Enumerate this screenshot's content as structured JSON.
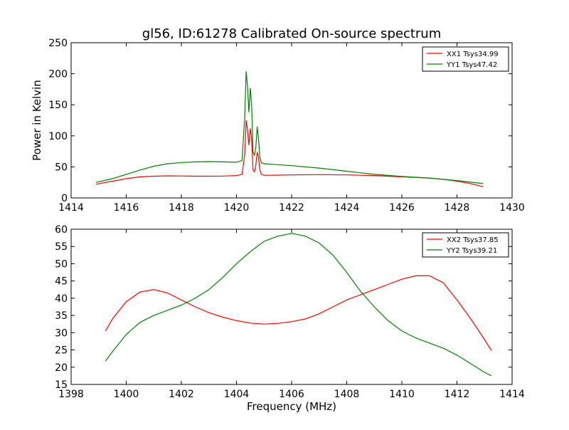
{
  "title": "gl56, ID:61278 Calibrated On-source spectrum",
  "chart_data": [
    {
      "type": "line",
      "title": "",
      "xlabel": "",
      "ylabel": "Power in Kelvin",
      "xlim": [
        1414,
        1430
      ],
      "ylim": [
        0,
        250
      ],
      "xticks": [
        1414,
        1416,
        1418,
        1420,
        1422,
        1424,
        1426,
        1428,
        1430
      ],
      "yticks": [
        0,
        50,
        100,
        150,
        200,
        250
      ],
      "legend_position": "top-right",
      "series": [
        {
          "name": "XX1 Tsys34.99",
          "color": "#ff0000",
          "x": [
            1414.9,
            1415.5,
            1416.0,
            1416.5,
            1417.0,
            1417.5,
            1418.0,
            1418.5,
            1419.0,
            1419.5,
            1420.0,
            1420.2,
            1420.3,
            1420.35,
            1420.4,
            1420.45,
            1420.5,
            1420.55,
            1420.6,
            1420.65,
            1420.7,
            1420.75,
            1420.8,
            1420.85,
            1420.9,
            1421.0,
            1421.5,
            1422.0,
            1423.0,
            1424.0,
            1425.0,
            1426.0,
            1427.0,
            1427.5,
            1428.0,
            1428.5,
            1428.95
          ],
          "y": [
            22,
            27,
            31,
            34,
            35,
            35.5,
            35.3,
            35,
            35,
            35.2,
            36,
            38,
            70,
            125,
            110,
            85,
            112,
            95,
            45,
            42,
            52,
            74,
            65,
            45,
            38,
            36.5,
            36.7,
            37,
            37.5,
            37,
            36,
            34,
            32,
            30,
            27,
            23,
            18
          ]
        },
        {
          "name": "YY1 Tsys47.42",
          "color": "#008000",
          "x": [
            1414.9,
            1415.5,
            1416.0,
            1416.5,
            1417.0,
            1417.5,
            1418.0,
            1418.5,
            1419.0,
            1419.5,
            1420.0,
            1420.2,
            1420.3,
            1420.35,
            1420.4,
            1420.45,
            1420.5,
            1420.55,
            1420.6,
            1420.65,
            1420.7,
            1420.75,
            1420.8,
            1420.85,
            1420.9,
            1421.0,
            1422.0,
            1423.0,
            1424.0,
            1425.0,
            1426.0,
            1427.0,
            1428.0,
            1428.95
          ],
          "y": [
            25,
            31,
            38,
            45,
            51,
            55,
            57,
            58,
            58.5,
            58,
            57.5,
            60,
            130,
            204,
            180,
            138,
            177,
            150,
            75,
            68,
            80,
            115,
            95,
            65,
            57,
            55,
            52,
            48,
            43,
            38,
            34.5,
            32,
            28,
            23
          ]
        }
      ]
    },
    {
      "type": "line",
      "title": "",
      "xlabel": "Frequency (MHz)",
      "ylabel": "",
      "xlim": [
        1398,
        1414
      ],
      "ylim": [
        15,
        60
      ],
      "xticks": [
        1398,
        1400,
        1402,
        1404,
        1406,
        1408,
        1410,
        1412,
        1414
      ],
      "yticks": [
        15,
        20,
        25,
        30,
        35,
        40,
        45,
        50,
        55,
        60
      ],
      "legend_position": "top-right",
      "series": [
        {
          "name": "XX2 Tsys37.85",
          "color": "#ff0000",
          "x": [
            1399.25,
            1399.5,
            1400.0,
            1400.5,
            1401.0,
            1401.5,
            1402.0,
            1402.5,
            1403.0,
            1403.5,
            1404.0,
            1404.5,
            1405.0,
            1405.5,
            1406.0,
            1406.5,
            1407.0,
            1407.5,
            1408.0,
            1408.5,
            1409.0,
            1409.5,
            1410.0,
            1410.5,
            1411.0,
            1411.5,
            1412.0,
            1412.5,
            1413.0,
            1413.25
          ],
          "y": [
            30.5,
            34,
            39,
            41.8,
            42.5,
            41.5,
            39.5,
            37.5,
            35.8,
            34.5,
            33.5,
            32.8,
            32.5,
            32.7,
            33.2,
            34,
            35.5,
            37.5,
            39.5,
            41,
            42.5,
            44,
            45.5,
            46.5,
            46.5,
            44.5,
            39.5,
            34,
            28,
            24.8
          ]
        },
        {
          "name": "YY2 Tsys39.21",
          "color": "#008000",
          "x": [
            1399.25,
            1399.5,
            1400.0,
            1400.5,
            1401.0,
            1401.5,
            1402.0,
            1402.5,
            1403.0,
            1403.5,
            1404.0,
            1404.5,
            1405.0,
            1405.5,
            1406.0,
            1406.5,
            1407.0,
            1407.5,
            1408.0,
            1408.5,
            1409.0,
            1409.5,
            1410.0,
            1410.5,
            1411.0,
            1411.5,
            1412.0,
            1412.5,
            1413.0,
            1413.25
          ],
          "y": [
            21.8,
            24.5,
            29.5,
            33,
            35,
            36.5,
            38,
            40,
            42.5,
            46,
            50,
            53.5,
            56.5,
            58,
            58.8,
            58,
            56,
            52.5,
            47.5,
            42,
            37.5,
            33.5,
            30.5,
            28.5,
            27,
            25.5,
            23.5,
            21,
            18.5,
            17.5
          ]
        }
      ]
    }
  ]
}
